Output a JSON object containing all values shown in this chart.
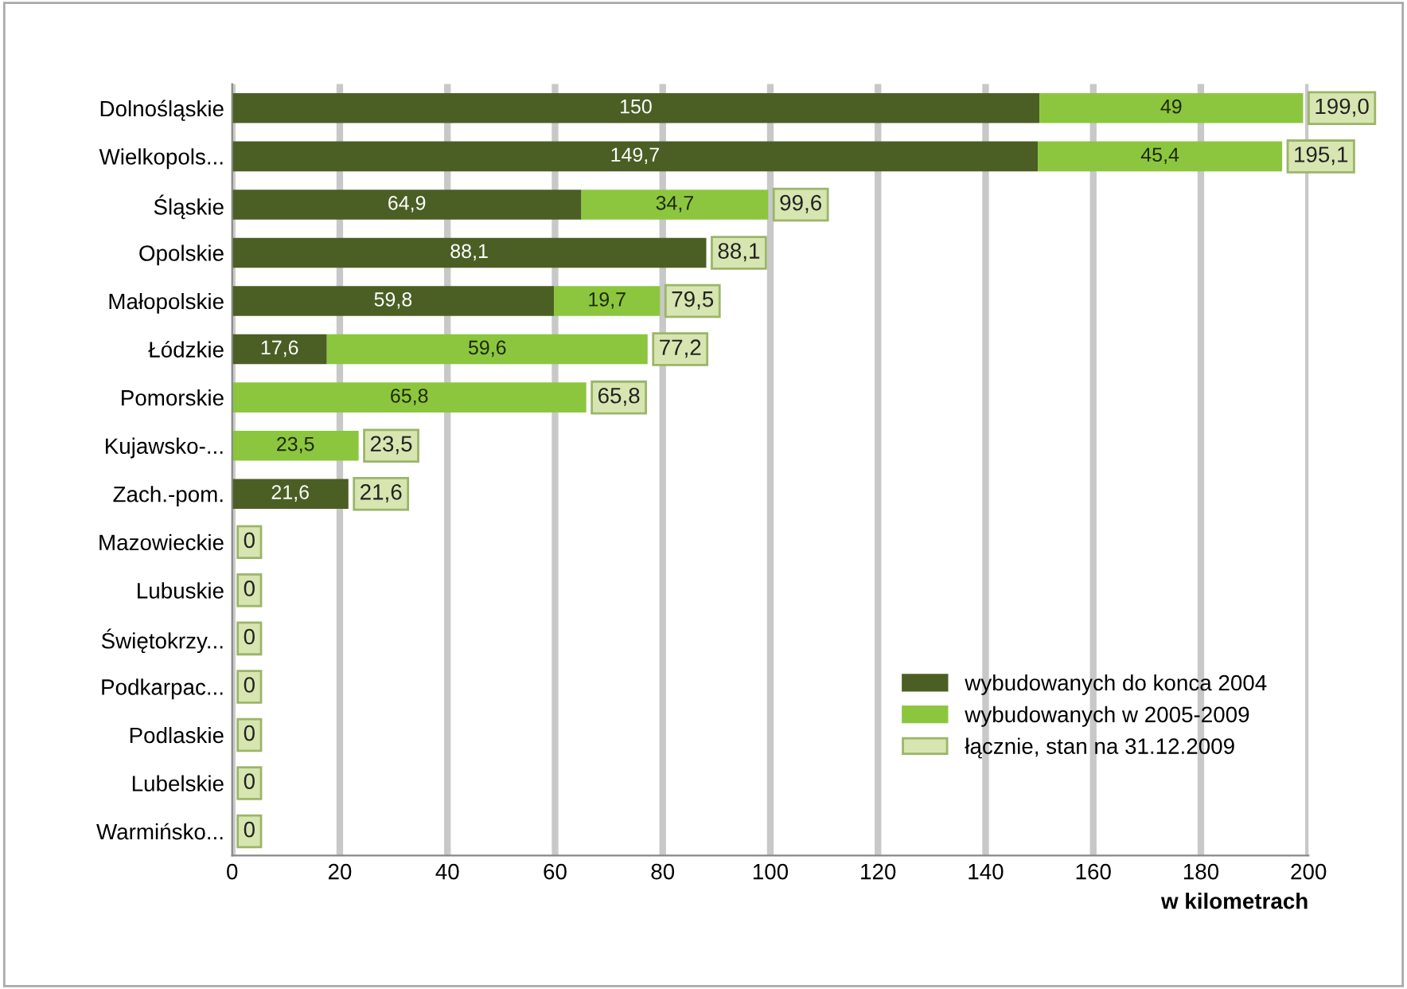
{
  "chart_data": {
    "type": "bar",
    "orientation": "horizontal",
    "stacked": true,
    "categories": [
      "Dolnośląskie",
      "Wielkopols...",
      "Śląskie",
      "Opolskie",
      "Małopolskie",
      "Łódzkie",
      "Pomorskie",
      "Kujawsko-...",
      "Zach.-pom.",
      "Mazowieckie",
      "Lubuskie",
      "Świętokrzy...",
      "Podkarpac...",
      "Podlaskie",
      "Lubelskie",
      "Warmińsko..."
    ],
    "series": [
      {
        "name": "wybudowanych do konca 2004",
        "color": "#4b5f24",
        "values": [
          150,
          149.7,
          64.9,
          88.1,
          59.8,
          17.6,
          null,
          null,
          21.6,
          null,
          null,
          null,
          null,
          null,
          null,
          null
        ],
        "value_labels": [
          "150",
          "149,7",
          "64,9",
          "88,1",
          "59,8",
          "17,6",
          null,
          null,
          "21,6",
          null,
          null,
          null,
          null,
          null,
          null,
          null
        ]
      },
      {
        "name": "wybudowanych w 2005-2009",
        "color": "#8cc63e",
        "values": [
          49,
          45.4,
          34.7,
          null,
          19.7,
          59.6,
          65.8,
          23.5,
          null,
          null,
          null,
          null,
          null,
          null,
          null,
          null
        ],
        "value_labels": [
          "49",
          "45,4",
          "34,7",
          null,
          "19,7",
          "59,6",
          "65,8",
          "23,5",
          null,
          null,
          null,
          null,
          null,
          null,
          null,
          null
        ]
      },
      {
        "name": "łącznie, stan na 31.12.2009",
        "color": "#d7e6b0",
        "values": [
          null,
          null,
          null,
          null,
          null,
          null,
          null,
          null,
          null,
          null,
          null,
          null,
          null,
          null,
          null,
          null
        ]
      }
    ],
    "totals": [
      "199,0",
      "195,1",
      "99,6",
      "88,1",
      "79,5",
      "77,2",
      "65,8",
      "23,5",
      "21,6",
      "0",
      "0",
      "0",
      "0",
      "0",
      "0",
      "0"
    ],
    "xlim": [
      0,
      200
    ],
    "xticks": [
      0,
      20,
      40,
      60,
      80,
      100,
      120,
      140,
      160,
      180,
      200
    ],
    "xlabel": "w kilometrach",
    "grid": "x",
    "legend": "bottom right"
  }
}
